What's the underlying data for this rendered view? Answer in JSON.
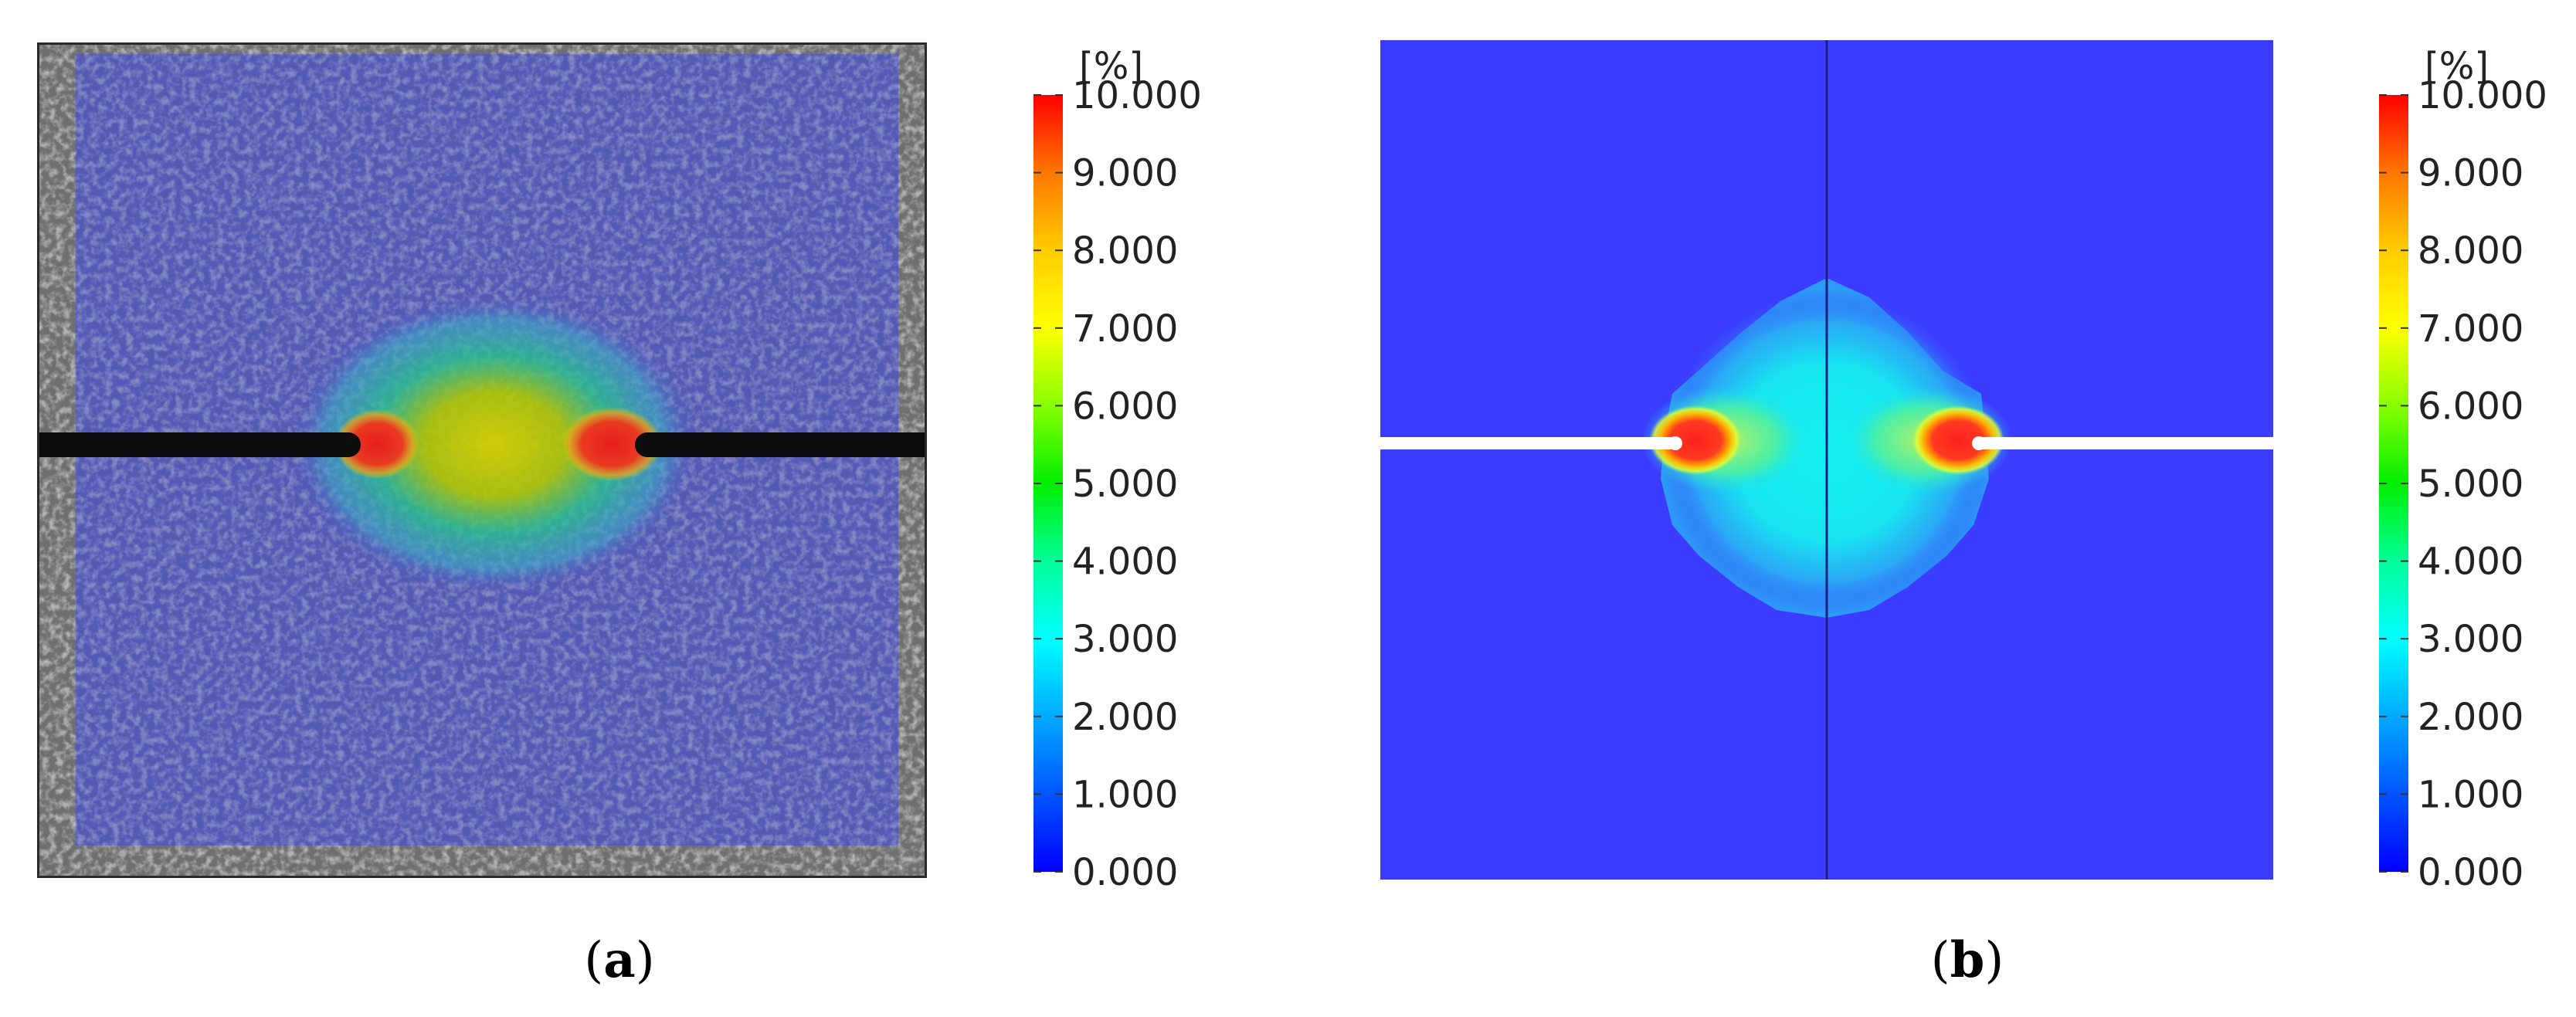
{
  "panels": [
    {
      "id": "a",
      "label_open": "(",
      "label_letter": "a",
      "label_close": ")",
      "kind": "photo-overlay",
      "colorbar": {
        "unit": "[%]",
        "ticks": [
          "10.000",
          "9.000",
          "8.000",
          "7.000",
          "6.000",
          "5.000",
          "4.000",
          "3.000",
          "2.000",
          "1.000",
          "0.000"
        ]
      }
    },
    {
      "id": "b",
      "label_open": "(",
      "label_letter": "b",
      "label_close": ")",
      "kind": "fem-contour",
      "colorbar": {
        "unit": "[%]",
        "ticks": [
          "10.000",
          "9.000",
          "8.000",
          "7.000",
          "6.000",
          "5.000",
          "4.000",
          "3.000",
          "2.000",
          "1.000",
          "0.000"
        ]
      }
    }
  ],
  "colorbar_range": [
    0,
    10
  ],
  "colors": {
    "field_background": "#3b3cff",
    "overlay_background": "#4b55c8",
    "speckle_gray": "#8a8a8a",
    "notch": "#0d0d0d",
    "high_strain": "#ff2a2a"
  }
}
